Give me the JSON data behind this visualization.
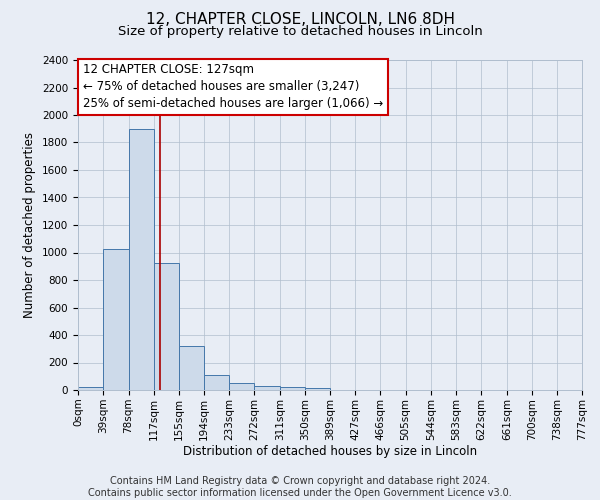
{
  "title": "12, CHAPTER CLOSE, LINCOLN, LN6 8DH",
  "subtitle": "Size of property relative to detached houses in Lincoln",
  "xlabel": "Distribution of detached houses by size in Lincoln",
  "ylabel": "Number of detached properties",
  "footer_line1": "Contains HM Land Registry data © Crown copyright and database right 2024.",
  "footer_line2": "Contains public sector information licensed under the Open Government Licence v3.0.",
  "annotation_title": "12 CHAPTER CLOSE: 127sqm",
  "annotation_line1": "← 75% of detached houses are smaller (3,247)",
  "annotation_line2": "25% of semi-detached houses are larger (1,066) →",
  "bar_edges": [
    0,
    39,
    78,
    117,
    155,
    194,
    233,
    272,
    311,
    350,
    389,
    427,
    466,
    505,
    544,
    583,
    622,
    661,
    700,
    738,
    777
  ],
  "bar_heights": [
    22,
    1025,
    1900,
    925,
    320,
    110,
    50,
    30,
    22,
    18,
    0,
    0,
    0,
    0,
    0,
    0,
    0,
    0,
    0,
    0
  ],
  "bar_color": "#cddaea",
  "bar_edgecolor": "#4477aa",
  "redline_x": 127,
  "redline_color": "#aa0000",
  "ylim": [
    0,
    2400
  ],
  "yticks": [
    0,
    200,
    400,
    600,
    800,
    1000,
    1200,
    1400,
    1600,
    1800,
    2000,
    2200,
    2400
  ],
  "background_color": "#e8edf5",
  "plot_bg_color": "#e8edf5",
  "annotation_box_color": "#ffffff",
  "annotation_border_color": "#cc0000",
  "title_fontsize": 11,
  "subtitle_fontsize": 9.5,
  "axis_label_fontsize": 8.5,
  "tick_fontsize": 7.5,
  "annotation_fontsize": 8.5,
  "footer_fontsize": 7
}
